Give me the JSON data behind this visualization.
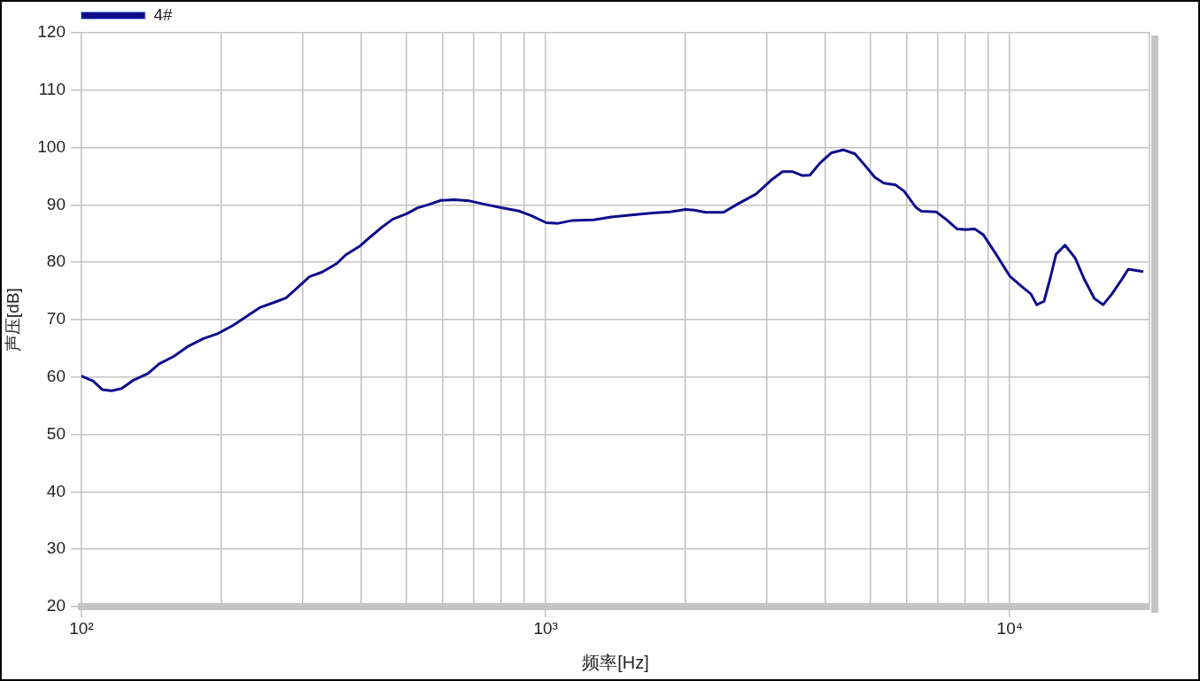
{
  "chart_data": {
    "type": "line",
    "xlabel": "频率[Hz]",
    "ylabel": "声压[dB]",
    "x": [
      100,
      106,
      111,
      116,
      122,
      129,
      139,
      147,
      158,
      170,
      183,
      197,
      212,
      228,
      242,
      264,
      276,
      293,
      310,
      330,
      355,
      371,
      399,
      416,
      442,
      468,
      503,
      530,
      557,
      595,
      635,
      685,
      750,
      794,
      880,
      932,
      1003,
      1064,
      1144,
      1270,
      1386,
      1515,
      1700,
      1857,
      2000,
      2088,
      2212,
      2417,
      2597,
      2840,
      3059,
      3240,
      3404,
      3580,
      3710,
      3900,
      4130,
      4375,
      4640,
      4850,
      5120,
      5350,
      5670,
      5920,
      6270,
      6450,
      6940,
      7260,
      7700,
      8040,
      8400,
      8770,
      9290,
      10000,
      10600,
      11100,
      11430,
      11850,
      12210,
      12580,
      13150,
      13840,
      14460,
      15210,
      15890,
      16600,
      17360,
      18000,
      19290
    ],
    "series": [
      {
        "name": "4#",
        "color": "#0d0d8c",
        "values": [
          60.2,
          59.3,
          57.8,
          57.6,
          58.0,
          59.4,
          60.6,
          62.3,
          63.6,
          65.4,
          66.7,
          67.6,
          69.0,
          70.7,
          72.1,
          73.2,
          73.8,
          75.7,
          77.5,
          78.3,
          79.8,
          81.3,
          82.9,
          84.2,
          86.0,
          87.5,
          88.5,
          89.5,
          90.0,
          90.8,
          90.9,
          90.7,
          90.0,
          89.6,
          88.9,
          88.1,
          86.9,
          86.8,
          87.3,
          87.4,
          87.9,
          88.2,
          88.6,
          88.8,
          89.2,
          89.1,
          88.7,
          88.7,
          90.2,
          91.9,
          94.3,
          95.8,
          95.8,
          95.1,
          95.2,
          97.3,
          99.1,
          99.6,
          98.9,
          97.1,
          94.8,
          93.8,
          93.5,
          92.4,
          89.6,
          88.9,
          88.8,
          87.6,
          85.8,
          85.7,
          85.8,
          84.8,
          81.7,
          77.6,
          75.8,
          74.5,
          72.6,
          73.2,
          77.1,
          81.4,
          83.0,
          80.7,
          77.1,
          73.7,
          72.6,
          74.5,
          76.8,
          78.8,
          78.4
        ]
      }
    ],
    "xlim": [
      100,
      20000
    ],
    "ylim": [
      20,
      120
    ],
    "xticks": [
      {
        "value": 100,
        "label": "10²"
      },
      {
        "value": 200,
        "label": null
      },
      {
        "value": 300,
        "label": null
      },
      {
        "value": 400,
        "label": null
      },
      {
        "value": 500,
        "label": null
      },
      {
        "value": 600,
        "label": null
      },
      {
        "value": 700,
        "label": null
      },
      {
        "value": 800,
        "label": null
      },
      {
        "value": 900,
        "label": null
      },
      {
        "value": 1000,
        "label": "10³"
      },
      {
        "value": 2000,
        "label": null
      },
      {
        "value": 3000,
        "label": null
      },
      {
        "value": 4000,
        "label": null
      },
      {
        "value": 5000,
        "label": null
      },
      {
        "value": 6000,
        "label": null
      },
      {
        "value": 7000,
        "label": null
      },
      {
        "value": 8000,
        "label": null
      },
      {
        "value": 9000,
        "label": null
      },
      {
        "value": 10000,
        "label": "10⁴"
      },
      {
        "value": 20000,
        "label": null
      }
    ],
    "yticks": [
      20,
      30,
      40,
      50,
      60,
      70,
      80,
      90,
      100,
      110,
      120
    ],
    "log": "x",
    "grid": true,
    "legend": "top left",
    "marker": "none",
    "line_style": "solid"
  }
}
